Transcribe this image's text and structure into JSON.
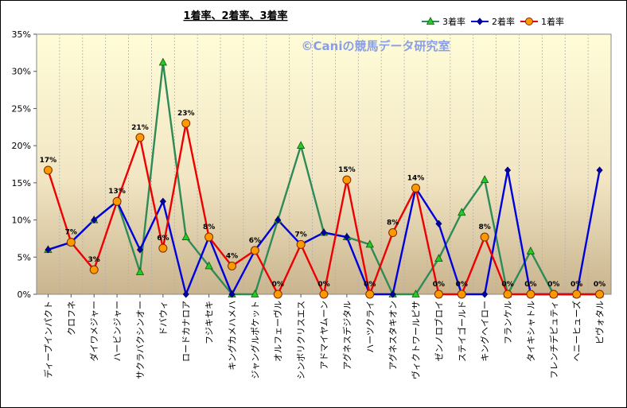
{
  "chart_data": {
    "type": "line",
    "title": "1着率、2着率、3着率",
    "watermark": "©Caniの競馬データ研究室",
    "categories": [
      "ディープインパクト",
      "クロフネ",
      "ダイワメジャー",
      "ハービンジャー",
      "サクラバクシンオー",
      "ドバウィ",
      "ロードカナロア",
      "フジキセキ",
      "キングカメハメハ",
      "ジャングルポケット",
      "オルフェーヴル",
      "シンボリクリスエス",
      "アドマイヤムーン",
      "アグネスデジタル",
      "ハーツクライ",
      "アグネスタキオン",
      "ヴィクトワールピサ",
      "ゼンノロブロイ",
      "ステイゴールド",
      "キングヘイロー",
      "フランケル",
      "タイキシャトル",
      "フレンチデピュティ",
      "ヘニーヒューズ",
      "ピヴォタル"
    ],
    "ylim": [
      0,
      35
    ],
    "yticks": [
      "0%",
      "5%",
      "10%",
      "15%",
      "20%",
      "25%",
      "30%",
      "35%"
    ],
    "grid": "vertical",
    "legend_position": "top-right",
    "series": [
      {
        "name": "3着率",
        "color": "#2e8b57",
        "marker": "triangle",
        "marker_color": "#22cc22",
        "values": [
          6,
          7,
          10,
          12.5,
          3,
          31.2,
          7.7,
          3.8,
          0,
          0,
          10,
          20,
          8.3,
          7.7,
          6.7,
          0,
          0,
          4.8,
          11,
          15.4,
          0,
          5.8,
          0,
          0,
          0
        ]
      },
      {
        "name": "2着率",
        "color": "#0000dd",
        "marker": "diamond",
        "marker_color": "#0000aa",
        "values": [
          6,
          7,
          10,
          12.5,
          6,
          12.5,
          0,
          7.7,
          0,
          5.9,
          10,
          6.7,
          8.3,
          7.7,
          0,
          0,
          14.3,
          9.5,
          0,
          0,
          16.7,
          0,
          0,
          0,
          16.7
        ]
      },
      {
        "name": "1着率",
        "color": "#ee0000",
        "marker": "circle",
        "marker_color": "#ff9900",
        "values": [
          16.7,
          7,
          3.3,
          12.5,
          21.1,
          6.2,
          23,
          7.7,
          3.8,
          5.9,
          0,
          6.7,
          0,
          15.4,
          0,
          8.3,
          14.3,
          0,
          0,
          7.7,
          0,
          0,
          0,
          0,
          0
        ],
        "labels": [
          "17%",
          "7%",
          "3%",
          "13%",
          "21%",
          "6%",
          "23%",
          "8%",
          "4%",
          "6%",
          "0%",
          "7%",
          "0%",
          "15%",
          "0%",
          "8%",
          "14%",
          "0%",
          "0%",
          "8%",
          "0%",
          "0%",
          "0%",
          "0%",
          "0%"
        ]
      }
    ]
  }
}
